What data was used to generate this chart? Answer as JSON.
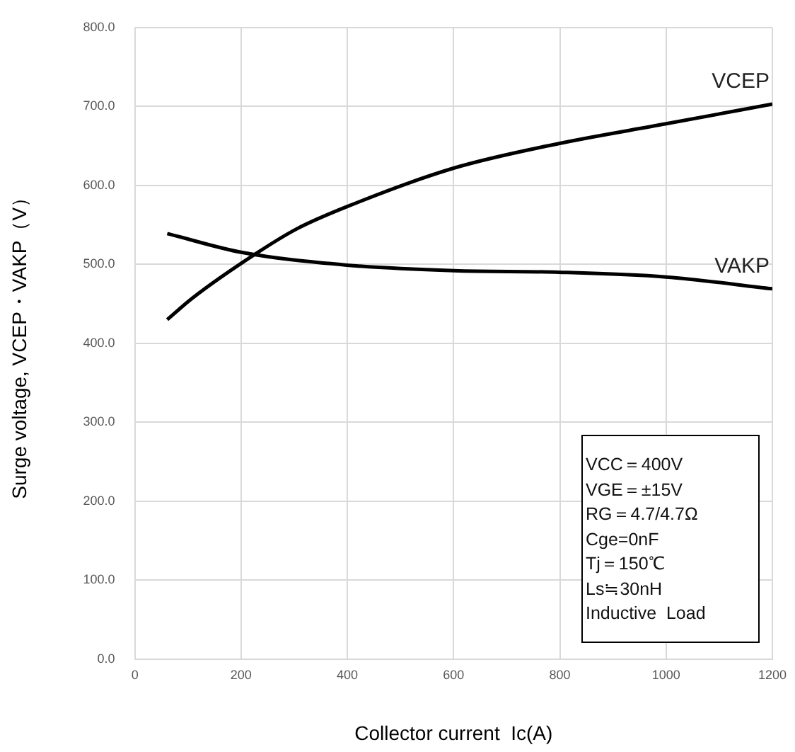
{
  "chart_data": {
    "type": "line",
    "xlabel": "Collector current  Ic(A)",
    "ylabel": "Surge voltage, VCEP・VAKP（V）",
    "series": [
      {
        "name": "VCEP",
        "color": "#000000",
        "x": [
          61,
          108,
          229,
          305,
          399,
          601,
          798,
          1000,
          1200
        ],
        "values": [
          430,
          457,
          514,
          545,
          573,
          622,
          653,
          678,
          703
        ]
      },
      {
        "name": "VAKP",
        "color": "#000000",
        "x": [
          61,
          202,
          399,
          601,
          798,
          1000,
          1200
        ],
        "values": [
          539,
          515,
          499,
          492,
          490,
          484,
          469
        ]
      }
    ],
    "xlim": [
      0,
      1200
    ],
    "xticks": [
      0,
      200,
      400,
      600,
      800,
      1000,
      1200
    ],
    "ylim": [
      0,
      800
    ],
    "yticks": [
      {
        "value": 0,
        "label": "0.0"
      },
      {
        "value": 100,
        "label": "100.0"
      },
      {
        "value": 200,
        "label": "200.0"
      },
      {
        "value": 300,
        "label": "300.0"
      },
      {
        "value": 400,
        "label": "400.0"
      },
      {
        "value": 500,
        "label": "500.0"
      },
      {
        "value": 600,
        "label": "600.0"
      },
      {
        "value": 700,
        "label": "700.0"
      },
      {
        "value": 800,
        "label": "800.0"
      }
    ],
    "grid": true,
    "legend": false,
    "marker": "none",
    "line_style": "solid",
    "annotations": [
      "VCC＝400V",
      "VGE＝±15V",
      "RG＝4.7/4.7Ω",
      "Cge=0nF",
      "Tj＝150℃",
      "Ls≒30nH",
      "Inductive  Load"
    ]
  }
}
